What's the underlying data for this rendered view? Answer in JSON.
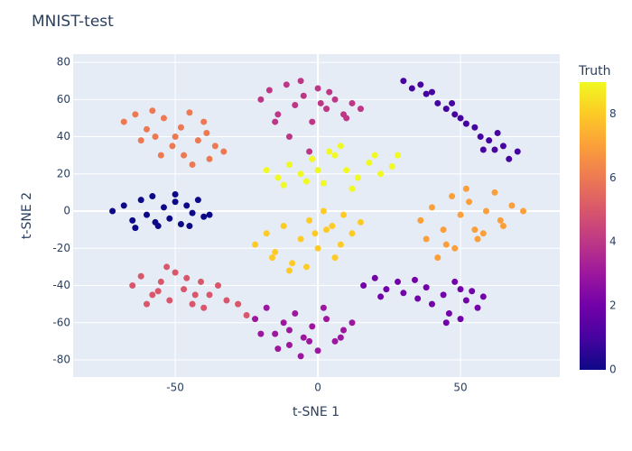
{
  "chart_data": {
    "type": "scatter",
    "title": "MNIST-test",
    "x_label": "t-SNE 1",
    "y_label": "t-SNE 2",
    "xlim": [
      -85.8,
      84.8
    ],
    "ylim": [
      -89.2,
      84.4
    ],
    "xticks": [
      -50,
      0,
      50
    ],
    "yticks": [
      -80,
      -60,
      -40,
      -20,
      0,
      20,
      40,
      60,
      80
    ],
    "grid": true,
    "colorbar": {
      "title": "Truth",
      "range": [
        0,
        9
      ],
      "ticks": [
        0,
        2,
        4,
        6,
        8
      ]
    },
    "colorscale": [
      "#0d0887",
      "#46039f",
      "#7201a8",
      "#9c179e",
      "#bd3786",
      "#d8576b",
      "#ed7953",
      "#fb9f3a",
      "#fdca26",
      "#f0f921"
    ],
    "x": [
      -72,
      -68,
      -65,
      -62,
      -60,
      -58,
      -56,
      -54,
      -52,
      -50,
      -48,
      -46,
      -44,
      -42,
      -40,
      -38,
      -64,
      -57,
      -50,
      -45,
      30,
      33,
      36,
      38,
      40,
      42,
      45,
      47,
      50,
      52,
      55,
      57,
      60,
      62,
      65,
      67,
      70,
      48,
      58,
      63,
      16,
      20,
      24,
      28,
      22,
      30,
      34,
      38,
      40,
      44,
      46,
      48,
      50,
      52,
      54,
      56,
      58,
      45,
      35,
      50,
      -22,
      -18,
      -15,
      -12,
      -10,
      -8,
      -5,
      -2,
      0,
      3,
      6,
      9,
      12,
      -20,
      -14,
      -6,
      2,
      8,
      -10,
      -3,
      -20,
      -17,
      -14,
      -11,
      -8,
      -5,
      -2,
      0,
      3,
      6,
      9,
      12,
      15,
      -15,
      -6,
      4,
      10,
      -10,
      1,
      -3,
      -65,
      -62,
      -58,
      -55,
      -52,
      -50,
      -47,
      -44,
      -41,
      -38,
      -35,
      -32,
      -60,
      -53,
      -46,
      -40,
      -28,
      -25,
      -56,
      -43,
      -68,
      -64,
      -60,
      -57,
      -54,
      -51,
      -48,
      -45,
      -42,
      -39,
      -36,
      -33,
      -62,
      -55,
      -47,
      -40,
      -50,
      -44,
      -58,
      -38,
      36,
      40,
      44,
      47,
      50,
      53,
      56,
      59,
      62,
      65,
      68,
      72,
      45,
      52,
      58,
      42,
      48,
      55,
      38,
      64,
      -22,
      -18,
      -15,
      -12,
      -9,
      -6,
      -3,
      0,
      3,
      6,
      9,
      12,
      15,
      -10,
      -4,
      2,
      8,
      -16,
      -1,
      5,
      -18,
      -14,
      -10,
      -6,
      -2,
      2,
      6,
      10,
      14,
      18,
      22,
      26,
      -12,
      -4,
      4,
      12,
      20,
      8,
      0,
      28
    ],
    "y": [
      0,
      3,
      -5,
      6,
      -2,
      8,
      -8,
      2,
      -4,
      5,
      -7,
      3,
      -1,
      6,
      -3,
      -2,
      -9,
      -6,
      9,
      -8,
      70,
      66,
      68,
      63,
      64,
      58,
      55,
      58,
      50,
      47,
      45,
      40,
      38,
      33,
      35,
      28,
      32,
      52,
      33,
      42,
      -40,
      -36,
      -42,
      -38,
      -46,
      -44,
      -37,
      -41,
      -50,
      -45,
      -55,
      -38,
      -58,
      -48,
      -43,
      -52,
      -46,
      -60,
      -47,
      -42,
      -58,
      -52,
      -66,
      -60,
      -72,
      -55,
      -68,
      -62,
      -75,
      -58,
      -70,
      -64,
      -60,
      -66,
      -74,
      -78,
      -52,
      -68,
      -64,
      -70,
      60,
      65,
      52,
      68,
      57,
      62,
      48,
      66,
      55,
      60,
      52,
      58,
      55,
      48,
      70,
      64,
      50,
      40,
      58,
      32,
      -40,
      -35,
      -45,
      -38,
      -48,
      -33,
      -42,
      -50,
      -38,
      -45,
      -40,
      -48,
      -50,
      -30,
      -36,
      -52,
      -50,
      -56,
      -43,
      -45,
      48,
      52,
      44,
      40,
      50,
      35,
      45,
      53,
      38,
      42,
      35,
      32,
      38,
      30,
      30,
      48,
      40,
      25,
      54,
      28,
      -5,
      2,
      -10,
      8,
      -2,
      5,
      -15,
      0,
      10,
      -8,
      3,
      0,
      -18,
      12,
      -12,
      -25,
      -20,
      -10,
      -15,
      -5,
      -18,
      -12,
      -22,
      -8,
      -28,
      -15,
      -5,
      -20,
      -10,
      -25,
      -2,
      -12,
      -6,
      -32,
      -30,
      0,
      -18,
      -25,
      -12,
      -8,
      22,
      18,
      25,
      20,
      28,
      15,
      30,
      22,
      18,
      26,
      20,
      24,
      14,
      16,
      32,
      12,
      30,
      35,
      22,
      30
    ],
    "color": [
      0,
      0,
      0,
      0,
      0,
      0,
      0,
      0,
      0,
      0,
      0,
      0,
      0,
      0,
      0,
      0,
      0,
      0,
      0,
      0,
      1,
      1,
      1,
      1,
      1,
      1,
      1,
      1,
      1,
      1,
      1,
      1,
      1,
      1,
      1,
      1,
      1,
      1,
      1,
      1,
      2,
      2,
      2,
      2,
      2,
      2,
      2,
      2,
      2,
      2,
      2,
      2,
      2,
      2,
      2,
      2,
      2,
      2,
      2,
      2,
      3,
      3,
      3,
      3,
      3,
      3,
      3,
      3,
      3,
      3,
      3,
      3,
      3,
      3,
      3,
      3,
      3,
      3,
      3,
      3,
      4,
      4,
      4,
      4,
      4,
      4,
      4,
      4,
      4,
      4,
      4,
      4,
      4,
      4,
      4,
      4,
      4,
      4,
      4,
      4,
      5,
      5,
      5,
      5,
      5,
      5,
      5,
      5,
      5,
      5,
      5,
      5,
      5,
      5,
      5,
      5,
      5,
      5,
      5,
      5,
      6,
      6,
      6,
      6,
      6,
      6,
      6,
      6,
      6,
      6,
      6,
      6,
      6,
      6,
      6,
      6,
      6,
      6,
      6,
      6,
      7,
      7,
      7,
      7,
      7,
      7,
      7,
      7,
      7,
      7,
      7,
      7,
      7,
      7,
      7,
      7,
      7,
      7,
      7,
      7,
      8,
      8,
      8,
      8,
      8,
      8,
      8,
      8,
      8,
      8,
      8,
      8,
      8,
      8,
      8,
      8,
      8,
      8,
      8,
      8,
      9,
      9,
      9,
      9,
      9,
      9,
      9,
      9,
      9,
      9,
      9,
      9,
      9,
      9,
      9,
      9,
      9,
      9,
      9,
      9
    ]
  }
}
